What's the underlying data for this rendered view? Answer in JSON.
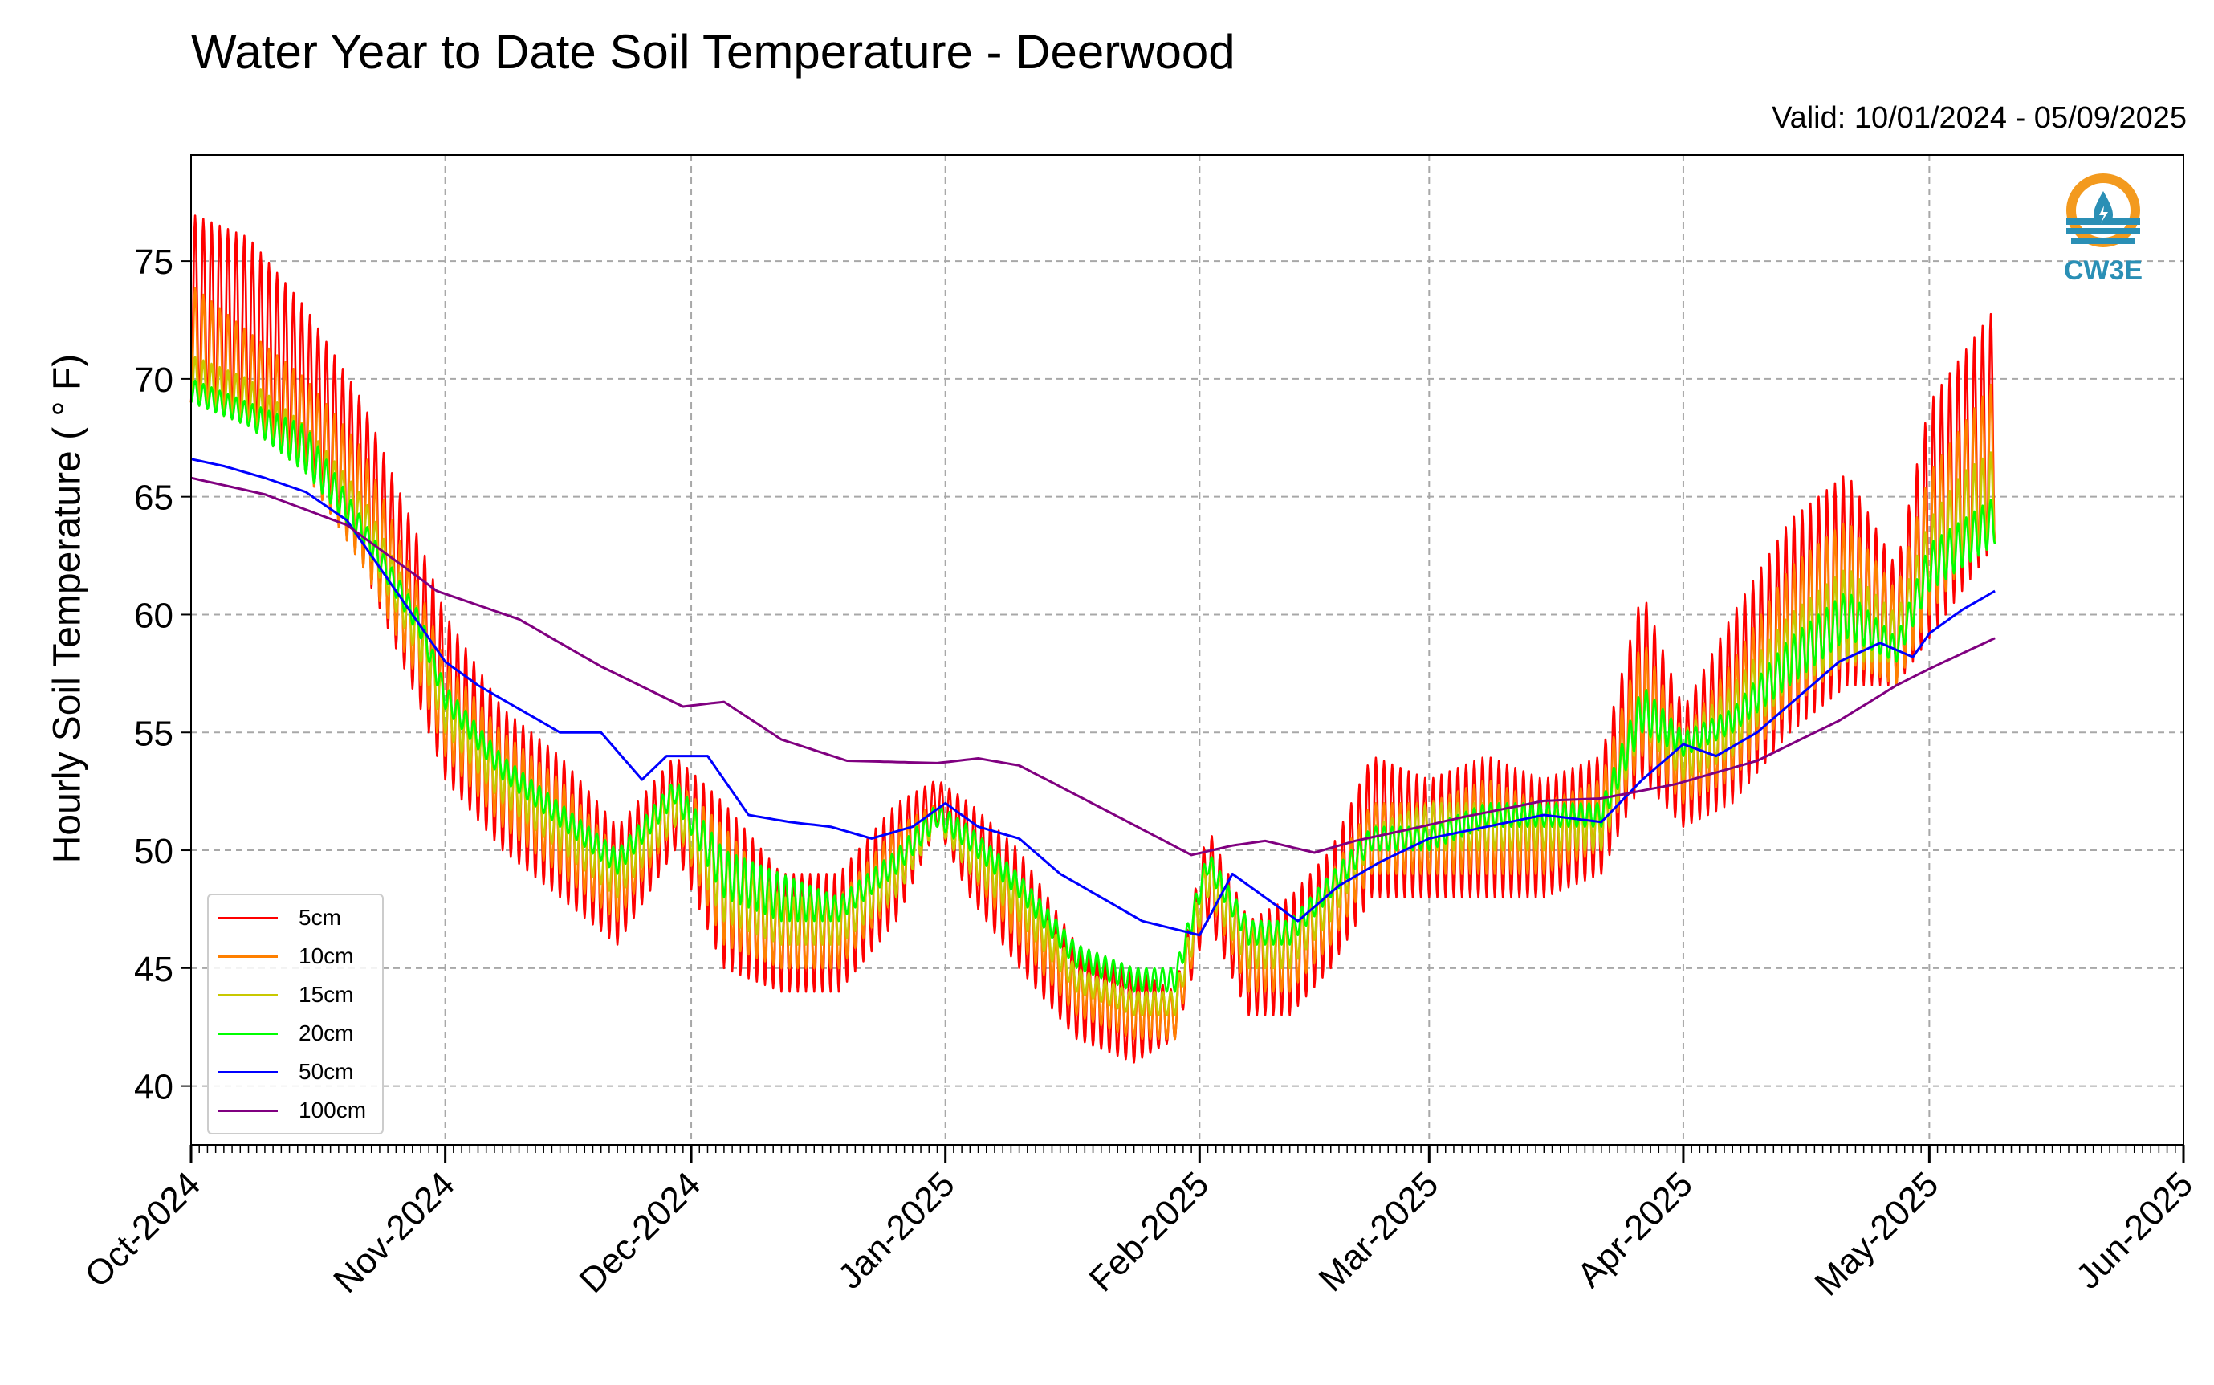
{
  "title": "Water Year to Date Soil Temperature - Deerwood",
  "valid_text": "Valid: 10/01/2024 - 05/09/2025",
  "logo": {
    "text": "CW3E",
    "icon": "cw3e-logo-icon",
    "colors": [
      "#f39a1e",
      "#2a8fb5"
    ]
  },
  "chart_data": {
    "type": "line",
    "title": "Water Year to Date Soil Temperature - Deerwood",
    "subtitle": "Valid: 10/01/2024 - 05/09/2025",
    "xlabel": "",
    "ylabel": "Hourly Soil Temperature ($^\\circ$F)",
    "ylabel_display": "Hourly Soil Temperature ( ° F)",
    "xlim": [
      "2024-10-01",
      "2025-06-01"
    ],
    "ylim": [
      37.5,
      79.5
    ],
    "yticks": [
      40,
      45,
      50,
      55,
      60,
      65,
      70,
      75
    ],
    "xticks": [
      {
        "date": "2024-10-01",
        "label": "Oct-2024"
      },
      {
        "date": "2024-11-01",
        "label": "Nov-2024"
      },
      {
        "date": "2024-12-01",
        "label": "Dec-2024"
      },
      {
        "date": "2025-01-01",
        "label": "Jan-2025"
      },
      {
        "date": "2025-02-01",
        "label": "Feb-2025"
      },
      {
        "date": "2025-03-01",
        "label": "Mar-2025"
      },
      {
        "date": "2025-04-01",
        "label": "Apr-2025"
      },
      {
        "date": "2025-05-01",
        "label": "May-2025"
      },
      {
        "date": "2025-06-01",
        "label": "Jun-2025"
      }
    ],
    "grid": true,
    "legend_position": "lower-left",
    "series": [
      {
        "name": "5cm",
        "color": "#ff0000",
        "kind": "daily-range",
        "points": [
          [
            "2024-10-01",
            69,
            77
          ],
          [
            "2024-10-08",
            68,
            76
          ],
          [
            "2024-10-15",
            66,
            73
          ],
          [
            "2024-10-22",
            62,
            69
          ],
          [
            "2024-10-29",
            56,
            63
          ],
          [
            "2024-11-01",
            53,
            60
          ],
          [
            "2024-11-08",
            50,
            56
          ],
          [
            "2024-11-15",
            48,
            54
          ],
          [
            "2024-11-22",
            46,
            51
          ],
          [
            "2024-11-29",
            50,
            54
          ],
          [
            "2024-12-05",
            45,
            52
          ],
          [
            "2024-12-12",
            44,
            49
          ],
          [
            "2024-12-19",
            44,
            49
          ],
          [
            "2024-12-26",
            47,
            52
          ],
          [
            "2024-12-31",
            51,
            53
          ],
          [
            "2025-01-04",
            48,
            52
          ],
          [
            "2025-01-10",
            45,
            50
          ],
          [
            "2025-01-17",
            42,
            46
          ],
          [
            "2025-01-24",
            41,
            45
          ],
          [
            "2025-01-29",
            42,
            44
          ],
          [
            "2025-02-02",
            47,
            51
          ],
          [
            "2025-02-07",
            43,
            47
          ],
          [
            "2025-02-12",
            43,
            48
          ],
          [
            "2025-02-17",
            45,
            50
          ],
          [
            "2025-02-22",
            48,
            54
          ],
          [
            "2025-03-01",
            48,
            53
          ],
          [
            "2025-03-08",
            48,
            54
          ],
          [
            "2025-03-15",
            48,
            53
          ],
          [
            "2025-03-22",
            49,
            54
          ],
          [
            "2025-03-27",
            53,
            61
          ],
          [
            "2025-04-01",
            51,
            56
          ],
          [
            "2025-04-07",
            52,
            60
          ],
          [
            "2025-04-14",
            55,
            64
          ],
          [
            "2025-04-21",
            57,
            66
          ],
          [
            "2025-04-27",
            57,
            62
          ],
          [
            "2025-05-01",
            59,
            69
          ],
          [
            "2025-05-05",
            61,
            71
          ],
          [
            "2025-05-09",
            63,
            73
          ]
        ]
      },
      {
        "name": "10cm",
        "color": "#ff8000",
        "kind": "daily-range",
        "points": [
          [
            "2024-10-01",
            69,
            74
          ],
          [
            "2024-10-08",
            68,
            72
          ],
          [
            "2024-10-15",
            66,
            70
          ],
          [
            "2024-10-22",
            62,
            67
          ],
          [
            "2024-10-29",
            57,
            61
          ],
          [
            "2024-11-01",
            54,
            58
          ],
          [
            "2024-11-08",
            51,
            55
          ],
          [
            "2024-11-15",
            49,
            53
          ],
          [
            "2024-11-22",
            47,
            50
          ],
          [
            "2024-11-29",
            51,
            53
          ],
          [
            "2024-12-05",
            46,
            51
          ],
          [
            "2024-12-12",
            45,
            48
          ],
          [
            "2024-12-19",
            45,
            48
          ],
          [
            "2024-12-26",
            48,
            51
          ],
          [
            "2024-12-31",
            51,
            52
          ],
          [
            "2025-01-04",
            49,
            51
          ],
          [
            "2025-01-10",
            46,
            49
          ],
          [
            "2025-01-17",
            43,
            45
          ],
          [
            "2025-01-24",
            42,
            44
          ],
          [
            "2025-01-29",
            42,
            44
          ],
          [
            "2025-02-02",
            48,
            50
          ],
          [
            "2025-02-07",
            44,
            47
          ],
          [
            "2025-02-12",
            44,
            47
          ],
          [
            "2025-02-17",
            46,
            49
          ],
          [
            "2025-02-22",
            49,
            52
          ],
          [
            "2025-03-01",
            49,
            52
          ],
          [
            "2025-03-08",
            49,
            53
          ],
          [
            "2025-03-15",
            49,
            52
          ],
          [
            "2025-03-22",
            50,
            53
          ],
          [
            "2025-03-27",
            54,
            59
          ],
          [
            "2025-04-01",
            52,
            55
          ],
          [
            "2025-04-07",
            53,
            58
          ],
          [
            "2025-04-14",
            56,
            62
          ],
          [
            "2025-04-21",
            58,
            64
          ],
          [
            "2025-04-27",
            57,
            61
          ],
          [
            "2025-05-01",
            60,
            66
          ],
          [
            "2025-05-05",
            62,
            68
          ],
          [
            "2025-05-09",
            63,
            70
          ]
        ]
      },
      {
        "name": "15cm",
        "color": "#c8c800",
        "kind": "daily-range",
        "points": [
          [
            "2024-10-01",
            69,
            71
          ],
          [
            "2024-10-08",
            68,
            70
          ],
          [
            "2024-10-15",
            66,
            68
          ],
          [
            "2024-10-22",
            63,
            65
          ],
          [
            "2024-10-29",
            58,
            60
          ],
          [
            "2024-11-01",
            55,
            57
          ],
          [
            "2024-11-08",
            52,
            54
          ],
          [
            "2024-11-15",
            50,
            52
          ],
          [
            "2024-11-22",
            48,
            50
          ],
          [
            "2024-11-29",
            51,
            53
          ],
          [
            "2024-12-05",
            47,
            50
          ],
          [
            "2024-12-12",
            46,
            48
          ],
          [
            "2024-12-19",
            46,
            48
          ],
          [
            "2024-12-26",
            48,
            50
          ],
          [
            "2024-12-31",
            51,
            52
          ],
          [
            "2025-01-04",
            49,
            51
          ],
          [
            "2025-01-10",
            47,
            49
          ],
          [
            "2025-01-17",
            44,
            45
          ],
          [
            "2025-01-24",
            43,
            44
          ],
          [
            "2025-01-29",
            43,
            44
          ],
          [
            "2025-02-02",
            48,
            50
          ],
          [
            "2025-02-07",
            45,
            47
          ],
          [
            "2025-02-12",
            45,
            47
          ],
          [
            "2025-02-17",
            47,
            49
          ],
          [
            "2025-02-22",
            50,
            51
          ],
          [
            "2025-03-01",
            50,
            52
          ],
          [
            "2025-03-08",
            50,
            52
          ],
          [
            "2025-03-15",
            50,
            52
          ],
          [
            "2025-03-22",
            50,
            52
          ],
          [
            "2025-03-27",
            55,
            57
          ],
          [
            "2025-04-01",
            53,
            55
          ],
          [
            "2025-04-07",
            54,
            57
          ],
          [
            "2025-04-14",
            57,
            60
          ],
          [
            "2025-04-21",
            58,
            62
          ],
          [
            "2025-04-27",
            58,
            60
          ],
          [
            "2025-05-01",
            61,
            64
          ],
          [
            "2025-05-05",
            62,
            66
          ],
          [
            "2025-05-09",
            63,
            67
          ]
        ]
      },
      {
        "name": "20cm",
        "color": "#00ff00",
        "kind": "daily-range",
        "points": [
          [
            "2024-10-01",
            69,
            70
          ],
          [
            "2024-10-08",
            68,
            69
          ],
          [
            "2024-10-15",
            66,
            68
          ],
          [
            "2024-10-22",
            63,
            64
          ],
          [
            "2024-10-29",
            59,
            60
          ],
          [
            "2024-11-01",
            56,
            57
          ],
          [
            "2024-11-08",
            53,
            54
          ],
          [
            "2024-11-15",
            51,
            52
          ],
          [
            "2024-11-22",
            49,
            50
          ],
          [
            "2024-11-29",
            52,
            53
          ],
          [
            "2024-12-05",
            48,
            50
          ],
          [
            "2024-12-12",
            47,
            49
          ],
          [
            "2024-12-19",
            47,
            48
          ],
          [
            "2024-12-26",
            49,
            50
          ],
          [
            "2024-12-31",
            51,
            52
          ],
          [
            "2025-01-04",
            50,
            51
          ],
          [
            "2025-01-10",
            48,
            49
          ],
          [
            "2025-01-17",
            45,
            46
          ],
          [
            "2025-01-24",
            44,
            45
          ],
          [
            "2025-01-29",
            44,
            45
          ],
          [
            "2025-02-02",
            49,
            50
          ],
          [
            "2025-02-07",
            46,
            47
          ],
          [
            "2025-02-12",
            46,
            47
          ],
          [
            "2025-02-17",
            48,
            49
          ],
          [
            "2025-02-22",
            50,
            51
          ],
          [
            "2025-03-01",
            50,
            51
          ],
          [
            "2025-03-08",
            51,
            52
          ],
          [
            "2025-03-15",
            51,
            52
          ],
          [
            "2025-03-22",
            51,
            52
          ],
          [
            "2025-03-27",
            55,
            57
          ],
          [
            "2025-04-01",
            54,
            55
          ],
          [
            "2025-04-07",
            55,
            56
          ],
          [
            "2025-04-14",
            57,
            59
          ],
          [
            "2025-04-21",
            59,
            61
          ],
          [
            "2025-04-27",
            58,
            59
          ],
          [
            "2025-05-01",
            61,
            63
          ],
          [
            "2025-05-05",
            62,
            64
          ],
          [
            "2025-05-09",
            63,
            65
          ]
        ]
      },
      {
        "name": "50cm",
        "color": "#0000ff",
        "kind": "line",
        "points": [
          [
            "2024-10-01",
            66.6
          ],
          [
            "2024-10-05",
            66.3
          ],
          [
            "2024-10-10",
            65.8
          ],
          [
            "2024-10-15",
            65.2
          ],
          [
            "2024-10-20",
            64.0
          ],
          [
            "2024-10-25",
            61.5
          ],
          [
            "2024-10-29",
            59.5
          ],
          [
            "2024-11-01",
            58.0
          ],
          [
            "2024-11-05",
            57.0
          ],
          [
            "2024-11-10",
            56.0
          ],
          [
            "2024-11-15",
            55.0
          ],
          [
            "2024-11-20",
            55.0
          ],
          [
            "2024-11-25",
            53.0
          ],
          [
            "2024-11-28",
            54.0
          ],
          [
            "2024-12-03",
            54.0
          ],
          [
            "2024-12-08",
            51.5
          ],
          [
            "2024-12-13",
            51.2
          ],
          [
            "2024-12-18",
            51.0
          ],
          [
            "2024-12-23",
            50.5
          ],
          [
            "2024-12-28",
            51.0
          ],
          [
            "2025-01-01",
            52.0
          ],
          [
            "2025-01-05",
            51.0
          ],
          [
            "2025-01-10",
            50.5
          ],
          [
            "2025-01-15",
            49.0
          ],
          [
            "2025-01-20",
            48.0
          ],
          [
            "2025-01-25",
            47.0
          ],
          [
            "2025-02-01",
            46.4
          ],
          [
            "2025-02-05",
            49.0
          ],
          [
            "2025-02-09",
            48.0
          ],
          [
            "2025-02-13",
            47.0
          ],
          [
            "2025-02-18",
            48.5
          ],
          [
            "2025-02-23",
            49.5
          ],
          [
            "2025-03-01",
            50.5
          ],
          [
            "2025-03-08",
            51.0
          ],
          [
            "2025-03-15",
            51.5
          ],
          [
            "2025-03-22",
            51.2
          ],
          [
            "2025-03-27",
            53.0
          ],
          [
            "2025-04-01",
            54.5
          ],
          [
            "2025-04-05",
            54.0
          ],
          [
            "2025-04-10",
            55.0
          ],
          [
            "2025-04-15",
            56.5
          ],
          [
            "2025-04-20",
            58.0
          ],
          [
            "2025-04-25",
            58.8
          ],
          [
            "2025-04-29",
            58.2
          ],
          [
            "2025-05-01",
            59.2
          ],
          [
            "2025-05-05",
            60.2
          ],
          [
            "2025-05-09",
            61.0
          ]
        ]
      },
      {
        "name": "100cm",
        "color": "#800080",
        "kind": "line",
        "points": [
          [
            "2024-10-01",
            65.8
          ],
          [
            "2024-10-10",
            65.1
          ],
          [
            "2024-10-20",
            63.8
          ],
          [
            "2024-10-31",
            61.0
          ],
          [
            "2024-11-10",
            59.8
          ],
          [
            "2024-11-20",
            57.8
          ],
          [
            "2024-11-30",
            56.1
          ],
          [
            "2024-12-05",
            56.3
          ],
          [
            "2024-12-12",
            54.7
          ],
          [
            "2024-12-20",
            53.8
          ],
          [
            "2024-12-31",
            53.7
          ],
          [
            "2025-01-05",
            53.9
          ],
          [
            "2025-01-10",
            53.6
          ],
          [
            "2025-01-20",
            51.8
          ],
          [
            "2025-01-31",
            49.8
          ],
          [
            "2025-02-05",
            50.2
          ],
          [
            "2025-02-09",
            50.4
          ],
          [
            "2025-02-15",
            49.9
          ],
          [
            "2025-02-20",
            50.4
          ],
          [
            "2025-02-28",
            51.0
          ],
          [
            "2025-03-05",
            51.4
          ],
          [
            "2025-03-15",
            52.1
          ],
          [
            "2025-03-22",
            52.2
          ],
          [
            "2025-03-31",
            52.8
          ],
          [
            "2025-04-10",
            53.8
          ],
          [
            "2025-04-20",
            55.5
          ],
          [
            "2025-04-27",
            57.0
          ],
          [
            "2025-05-01",
            57.7
          ],
          [
            "2025-05-09",
            59.0
          ]
        ]
      }
    ]
  }
}
